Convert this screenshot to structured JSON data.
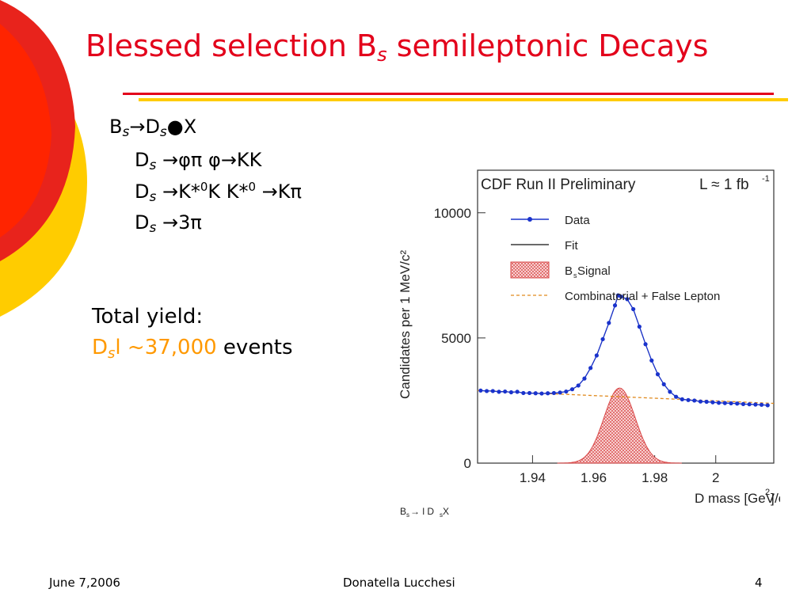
{
  "slide": {
    "title_main": "Blessed selection B",
    "title_sub": "s",
    "title_rest": " semileptonic Decays",
    "chain": {
      "line0": [
        "B",
        "s",
        "→D",
        "s",
        "●X"
      ],
      "line1": [
        "D",
        "s",
        " →φπ  φ→KK"
      ],
      "line2": [
        "D",
        "s",
        " →K*",
        "0",
        "K K*",
        "0",
        " →Kπ"
      ],
      "line3": [
        "D",
        "s",
        " →3π"
      ]
    },
    "yield_label": "Total yield:",
    "yield_ds": "D",
    "yield_ds_sub": "s",
    "yield_value": "l ~37,000",
    "yield_events": " events"
  },
  "footer": {
    "date": "June 7,2006",
    "author": "Donatella Lucchesi",
    "page": "4"
  },
  "colors": {
    "title_red": "#e3001b",
    "rule_yellow": "#ffcc00",
    "accent_orange": "#ff9900",
    "data_blue": "#1a33cc",
    "signal_red": "#d94a4a",
    "bg_orange": "#e08a1e"
  },
  "chart_data": {
    "type": "scatter",
    "title": "CDF Run II Preliminary",
    "lumi_label": "L ≈ 1 fb",
    "lumi_sup": "-1",
    "xlabel": "D mass [GeV/c",
    "xlabel_sup": "2",
    "xlabel_end": "]",
    "ylabel": "Candidates per 1 MeV/c²",
    "footnote": "B",
    "footnote_sub": "s",
    "footnote_mid": " → l D",
    "footnote_sub2": "s",
    "footnote_end": " X",
    "xlim": [
      1.922,
      2.019
    ],
    "ylim": [
      0,
      11700
    ],
    "xticks": [
      1.94,
      1.96,
      1.98,
      2.0
    ],
    "xtick_labels": [
      "1.94",
      "1.96",
      "1.98",
      "2"
    ],
    "yticks": [
      0,
      5000,
      10000
    ],
    "ytick_labels": [
      "0",
      "5000",
      "10000"
    ],
    "legend": [
      {
        "name": "Data",
        "style": "data"
      },
      {
        "name": "Fit",
        "style": "fit"
      },
      {
        "name": "B",
        "sub": "s",
        "name_end": " Signal",
        "style": "signal"
      },
      {
        "name": "Combinatorial + False Lepton",
        "style": "background"
      }
    ],
    "signal": {
      "mean": 1.9685,
      "sigma": 0.0051,
      "peak": 3000
    },
    "background": {
      "start": 2900,
      "slope_per_gev": -5300,
      "x0": 1.922
    },
    "data_points": [
      [
        1.923,
        2900
      ],
      [
        1.925,
        2880
      ],
      [
        1.927,
        2880
      ],
      [
        1.929,
        2850
      ],
      [
        1.931,
        2860
      ],
      [
        1.933,
        2830
      ],
      [
        1.935,
        2850
      ],
      [
        1.937,
        2800
      ],
      [
        1.939,
        2800
      ],
      [
        1.941,
        2790
      ],
      [
        1.943,
        2780
      ],
      [
        1.945,
        2790
      ],
      [
        1.947,
        2800
      ],
      [
        1.949,
        2820
      ],
      [
        1.951,
        2860
      ],
      [
        1.953,
        2950
      ],
      [
        1.955,
        3100
      ],
      [
        1.957,
        3380
      ],
      [
        1.959,
        3800
      ],
      [
        1.961,
        4300
      ],
      [
        1.963,
        4950
      ],
      [
        1.965,
        5600
      ],
      [
        1.967,
        6300
      ],
      [
        1.968,
        6700
      ],
      [
        1.969,
        6650
      ],
      [
        1.971,
        6550
      ],
      [
        1.973,
        6150
      ],
      [
        1.975,
        5450
      ],
      [
        1.977,
        4750
      ],
      [
        1.979,
        4100
      ],
      [
        1.981,
        3550
      ],
      [
        1.983,
        3150
      ],
      [
        1.985,
        2850
      ],
      [
        1.987,
        2650
      ],
      [
        1.989,
        2550
      ],
      [
        1.991,
        2520
      ],
      [
        1.993,
        2500
      ],
      [
        1.995,
        2460
      ],
      [
        1.997,
        2450
      ],
      [
        1.999,
        2430
      ],
      [
        2.001,
        2410
      ],
      [
        2.003,
        2400
      ],
      [
        2.005,
        2390
      ],
      [
        2.007,
        2380
      ],
      [
        2.009,
        2360
      ],
      [
        2.011,
        2350
      ],
      [
        2.013,
        2340
      ],
      [
        2.015,
        2330
      ],
      [
        2.017,
        2310
      ]
    ]
  }
}
